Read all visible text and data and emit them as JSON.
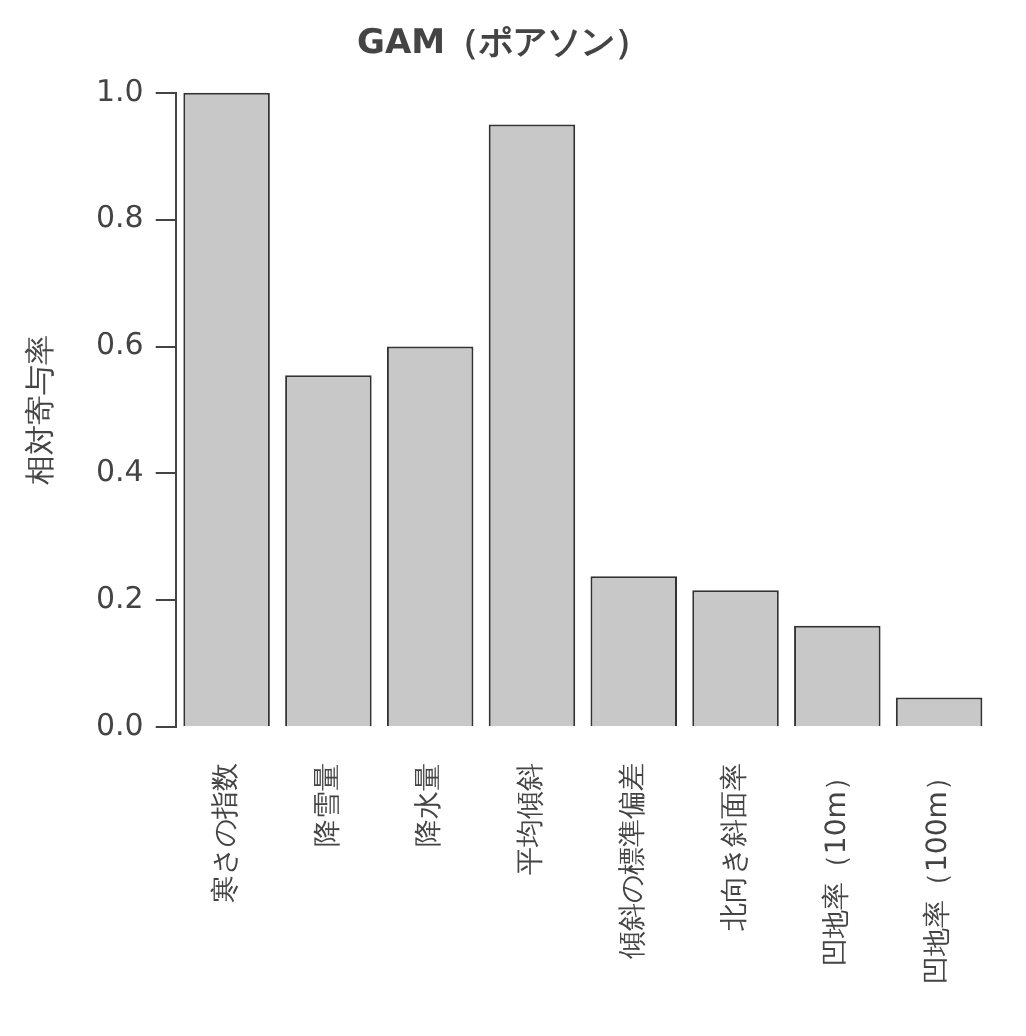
{
  "chart_data": {
    "type": "bar",
    "title": "GAM（ポアソン）",
    "ylabel": "相対寄与率",
    "categories": [
      "寒さの指数",
      "降雪量",
      "降水量",
      "平均傾斜",
      "傾斜の標準偏差",
      "北向き斜面率",
      "凹地率（10m）",
      "凹地率（100m）"
    ],
    "values": [
      1.0,
      0.555,
      0.6,
      0.95,
      0.238,
      0.216,
      0.16,
      0.047
    ],
    "color": "#c8c8c8",
    "ylim": [
      0,
      1
    ],
    "yticks": [
      {
        "value": 0,
        "label": "0.0"
      },
      {
        "value": 0.2,
        "label": "0.2"
      },
      {
        "value": 0.4,
        "label": "0.4"
      },
      {
        "value": 0.6,
        "label": "0.6"
      },
      {
        "value": 0.8,
        "label": "0.8"
      },
      {
        "value": 1,
        "label": "1.0"
      }
    ],
    "grid": false,
    "legend": false
  }
}
